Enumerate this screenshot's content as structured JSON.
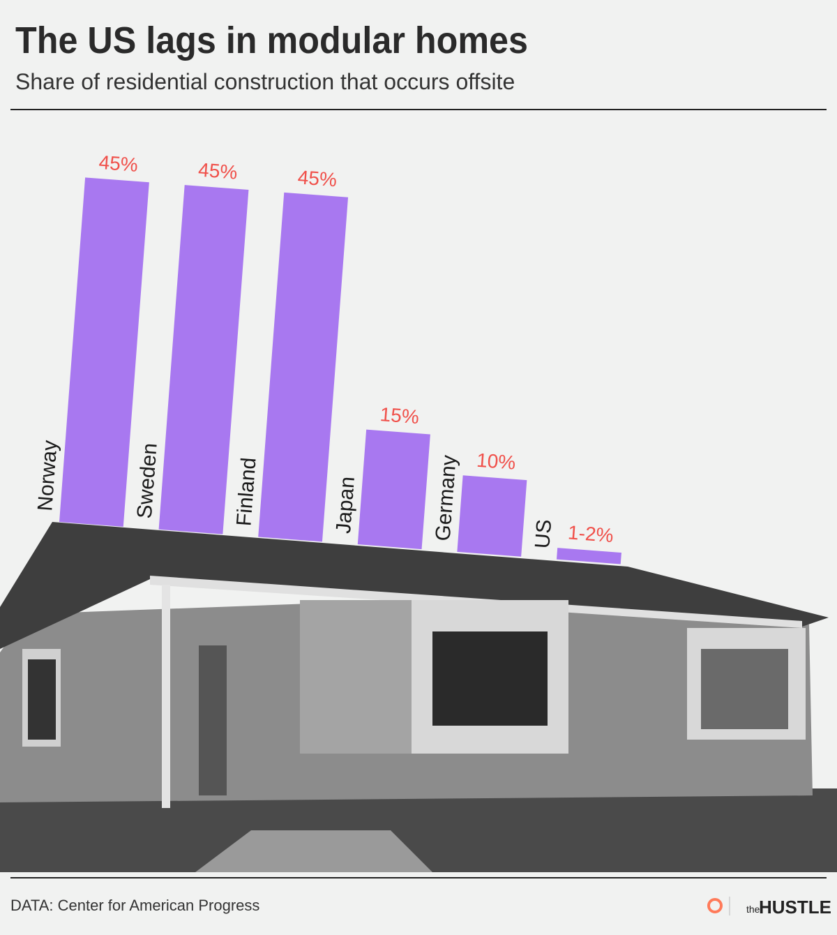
{
  "chart_data": {
    "type": "bar",
    "title": "The US lags in modular homes",
    "subtitle": "Share of residential construction that occurs offsite",
    "categories": [
      "Norway",
      "Sweden",
      "Finland",
      "Japan",
      "Germany",
      "US"
    ],
    "values": [
      45,
      45,
      45,
      15,
      10,
      1.5
    ],
    "value_labels": [
      "45%",
      "45%",
      "45%",
      "15%",
      "10%",
      "1-2%"
    ],
    "color": "#a878f0",
    "label_color": "#f0504a",
    "source": "DATA: Center for American Progress",
    "logo": {
      "prefix": "the",
      "name": "HUSTLE"
    }
  }
}
